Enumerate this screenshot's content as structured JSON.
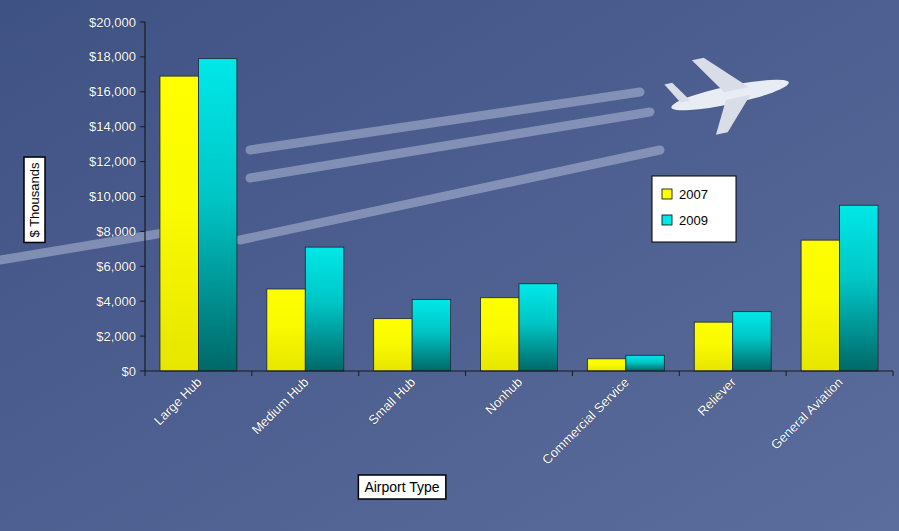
{
  "chart_data": {
    "type": "bar",
    "x_label": "Airport Type",
    "y_label": "$ Thousands",
    "categories": [
      "Large Hub",
      "Medium Hub",
      "Small Hub",
      "Nonhub",
      "Commercial Service",
      "Reliever",
      "General Aviation"
    ],
    "series": [
      {
        "name": "2007",
        "color": "#ffff00",
        "values": [
          16900,
          4700,
          3000,
          4200,
          700,
          2800,
          7500
        ]
      },
      {
        "name": "2009",
        "color": "#00e8e8",
        "values": [
          17900,
          7100,
          4100,
          5000,
          900,
          3400,
          9500
        ]
      }
    ],
    "ylim": [
      0,
      20000
    ],
    "yticks": [
      {
        "value": 0,
        "label": "$0"
      },
      {
        "value": 2000,
        "label": "$2,000"
      },
      {
        "value": 4000,
        "label": "$4,000"
      },
      {
        "value": 6000,
        "label": "$6,000"
      },
      {
        "value": 8000,
        "label": "$8,000"
      },
      {
        "value": 10000,
        "label": "$10,000"
      },
      {
        "value": 12000,
        "label": "$12,000"
      },
      {
        "value": 14000,
        "label": "$14,000"
      },
      {
        "value": 16000,
        "label": "$16,000"
      },
      {
        "value": 18000,
        "label": "$18,000"
      },
      {
        "value": 20000,
        "label": "$20,000"
      }
    ],
    "grid": false,
    "legend": "right"
  }
}
